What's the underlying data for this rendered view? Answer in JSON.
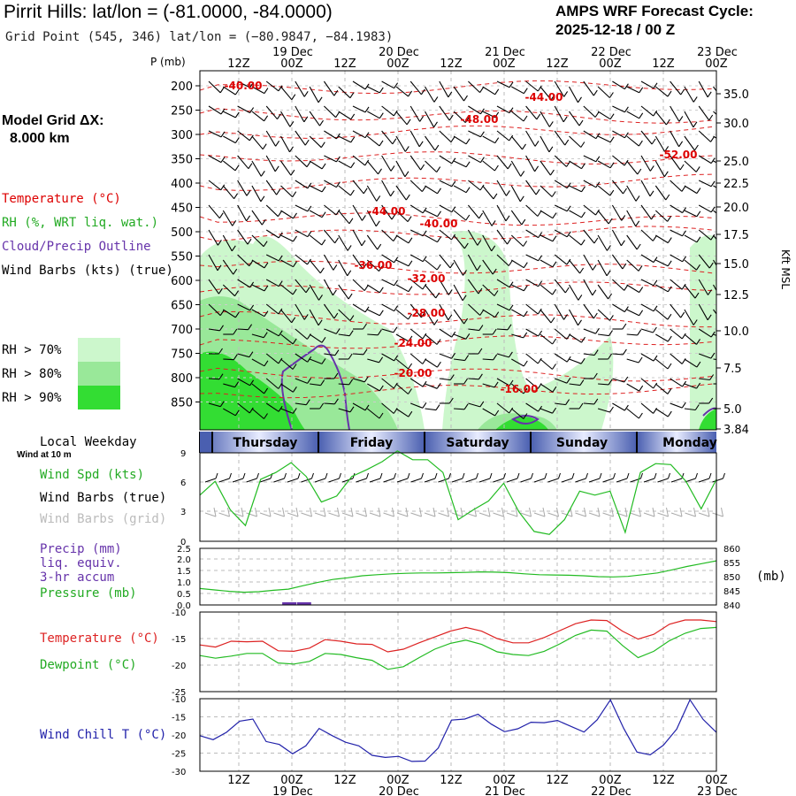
{
  "header": {
    "title": "Pirrit Hills:  lat/lon = (-81.0000, -84.0000)",
    "subtitle": "Grid Point (545, 346) lat/lon = (−80.9847, −84.1983)",
    "cycle_line1": "AMPS WRF Forecast Cycle:",
    "cycle_line2": "2025-12-18 / 00  Z"
  },
  "legend": {
    "model_grid_line1": "Model Grid ΔX:",
    "model_grid_line2": "8.000 km",
    "temperature": "Temperature (°C)",
    "rh": "RH (%, WRT liq. wat.)",
    "cloud": "Cloud/Precip Outline",
    "wind_barbs": "Wind Barbs (kts) (true)",
    "rh70": "RH > 70%",
    "rh80": "RH > 80%",
    "rh90": "RH > 90%",
    "colors": {
      "rh70": "#ccf7cc",
      "rh80": "#99e899",
      "rh90": "#33dd33",
      "temp": "#dd0000",
      "cloud": "#6633aa"
    }
  },
  "panel_labels": {
    "local_weekday": "Local Weekday",
    "wind_at_10m": "Wind at 10 m",
    "wind_spd": "Wind Spd (kts)",
    "wind_barbs_true": "Wind Barbs (true)",
    "wind_barbs_grid": "Wind Barbs (grid)",
    "precip": "Precip (mm)",
    "liq_equiv": "liq. equiv.",
    "accum": "3-hr accum",
    "pressure": "Pressure (mb)",
    "pressure_unit": "(mb)",
    "temperature": "Temperature (°C)",
    "dewpoint": "Dewpoint (°C)",
    "wind_chill": "Wind Chill T (°C)",
    "p_axis": "P (mb)",
    "kft_msl": "Kft MSL"
  },
  "weekdays": [
    "Thursday",
    "Friday",
    "Saturday",
    "Sunday",
    "Monday"
  ],
  "chart_data": [
    {
      "type": "heatmap",
      "name": "cross-section",
      "x_ticks": [
        {
          "time": "12Z",
          "date": ""
        },
        {
          "time": "00Z",
          "date": "19 Dec"
        },
        {
          "time": "12Z",
          "date": ""
        },
        {
          "time": "00Z",
          "date": "20 Dec"
        },
        {
          "time": "12Z",
          "date": ""
        },
        {
          "time": "00Z",
          "date": "21 Dec"
        },
        {
          "time": "12Z",
          "date": ""
        },
        {
          "time": "00Z",
          "date": "22 Dec"
        },
        {
          "time": "12Z",
          "date": ""
        },
        {
          "time": "00Z",
          "date": "23 Dec"
        }
      ],
      "y_pressure_ticks": [
        "200",
        "250",
        "300",
        "350",
        "400",
        "450",
        "500",
        "550",
        "600",
        "650",
        "700",
        "750",
        "800",
        "850"
      ],
      "y_height_ticks": [
        "35.0",
        "30.0",
        "25.0",
        "22.5",
        "20.0",
        "17.5",
        "15.0",
        "12.5",
        "10.0",
        "7.5",
        "5.0",
        "3.84"
      ],
      "temperature_contour_labels": [
        "-40.00",
        "-44.00",
        "-48.00",
        "-52.00",
        "-44.00",
        "-40.00",
        "-36.00",
        "-32.00",
        "-28.00",
        "-24.00",
        "-20.00",
        "-16.00"
      ]
    },
    {
      "type": "line",
      "name": "wind-speed",
      "ylim": [
        0,
        9
      ],
      "yticks": [
        "9",
        "6",
        "3",
        "0"
      ],
      "series": [
        {
          "name": "Wind Spd (kts)",
          "color": "#22bb22",
          "values": [
            4.7,
            6.1,
            3.2,
            1.6,
            6.3,
            7.0,
            8.0,
            6.6,
            4.0,
            4.6,
            6.6,
            7.3,
            8.1,
            9.6,
            8.3,
            8.3,
            7.0,
            2.2,
            3.2,
            4.1,
            5.9,
            3.0,
            1.0,
            0.7,
            2.2,
            5.1,
            4.7,
            5.1,
            0.9,
            7.0,
            7.9,
            7.8,
            6.1,
            3.3,
            6.3
          ]
        }
      ]
    },
    {
      "type": "line",
      "name": "precip-pressure",
      "ylim_left": [
        0,
        2.5
      ],
      "yticks_left": [
        "2.5",
        "2.0",
        "1.5",
        "1.0",
        "0.5",
        "0.0"
      ],
      "ylim_right": [
        840,
        860
      ],
      "yticks_right": [
        "860",
        "855",
        "850",
        "845",
        "840"
      ],
      "series": [
        {
          "name": "Pressure (mb)",
          "color": "#22bb22",
          "values": [
            845.8,
            845.3,
            844.8,
            844.5,
            844.7,
            845.2,
            845.6,
            846.8,
            848.0,
            849.0,
            849.6,
            850.3,
            850.7,
            851.0,
            851.2,
            851.3,
            851.3,
            851.4,
            851.5,
            851.7,
            851.6,
            851.4,
            851.0,
            850.7,
            850.6,
            850.5,
            850.3,
            850.0,
            849.9,
            850.1,
            850.7,
            851.3,
            852.4,
            853.6,
            854.6,
            855.6
          ]
        },
        {
          "name": "Precip (mm)",
          "color": "#6633aa",
          "values": [
            0,
            0,
            0,
            0,
            0,
            0,
            0.12,
            0.12,
            0,
            0,
            0,
            0,
            0,
            0,
            0,
            0,
            0,
            0,
            0,
            0,
            0,
            0,
            0,
            0,
            0,
            0,
            0,
            0,
            0,
            0,
            0,
            0,
            0,
            0,
            0,
            0
          ]
        }
      ]
    },
    {
      "type": "line",
      "name": "temperature-dewpoint",
      "ylim": [
        -25,
        -10
      ],
      "yticks": [
        "-10",
        "-15",
        "-20",
        "-25"
      ],
      "series": [
        {
          "name": "Temperature (°C)",
          "color": "#dd2222",
          "values": [
            -16.2,
            -16.6,
            -15.5,
            -15.6,
            -15.5,
            -17.3,
            -17.4,
            -16.8,
            -15.2,
            -15.5,
            -16.0,
            -16.1,
            -17.5,
            -17.0,
            -15.8,
            -14.7,
            -13.6,
            -12.9,
            -13.6,
            -15.0,
            -15.8,
            -15.8,
            -14.8,
            -13.5,
            -12.2,
            -11.5,
            -11.6,
            -13.6,
            -15.1,
            -14.2,
            -12.3,
            -11.5,
            -11.5,
            -11.8
          ]
        },
        {
          "name": "Dewpoint (°C)",
          "color": "#22bb22",
          "values": [
            -18.2,
            -18.7,
            -18.3,
            -17.8,
            -17.8,
            -19.6,
            -19.8,
            -19.3,
            -17.8,
            -18.0,
            -18.6,
            -19.1,
            -20.8,
            -20.3,
            -18.6,
            -17.0,
            -15.9,
            -15.3,
            -16.1,
            -17.5,
            -18.0,
            -18.2,
            -17.4,
            -16.0,
            -14.4,
            -13.4,
            -13.6,
            -16.3,
            -18.6,
            -17.4,
            -15.4,
            -14.0,
            -13.1,
            -12.9
          ]
        }
      ]
    },
    {
      "type": "line",
      "name": "wind-chill",
      "ylim": [
        -30,
        -10
      ],
      "yticks": [
        "-10",
        "-15",
        "-20",
        "-25",
        "-30"
      ],
      "series": [
        {
          "name": "Wind Chill T (°C)",
          "color": "#2222aa",
          "values": [
            -20.2,
            -21.3,
            -19.3,
            -16.2,
            -15.6,
            -21.8,
            -22.6,
            -25.2,
            -23.0,
            -18.2,
            -20.2,
            -22.0,
            -23.0,
            -25.6,
            -26.2,
            -25.9,
            -27.3,
            -27.2,
            -23.6,
            -15.9,
            -15.6,
            -14.3,
            -17.0,
            -19.1,
            -18.3,
            -16.5,
            -16.6,
            -16.0,
            -17.6,
            -19.2,
            -15.8,
            -10.3,
            -18.2,
            -24.7,
            -25.5,
            -22.8,
            -18.4,
            -10.3,
            -15.7,
            -19.3
          ]
        }
      ]
    }
  ]
}
